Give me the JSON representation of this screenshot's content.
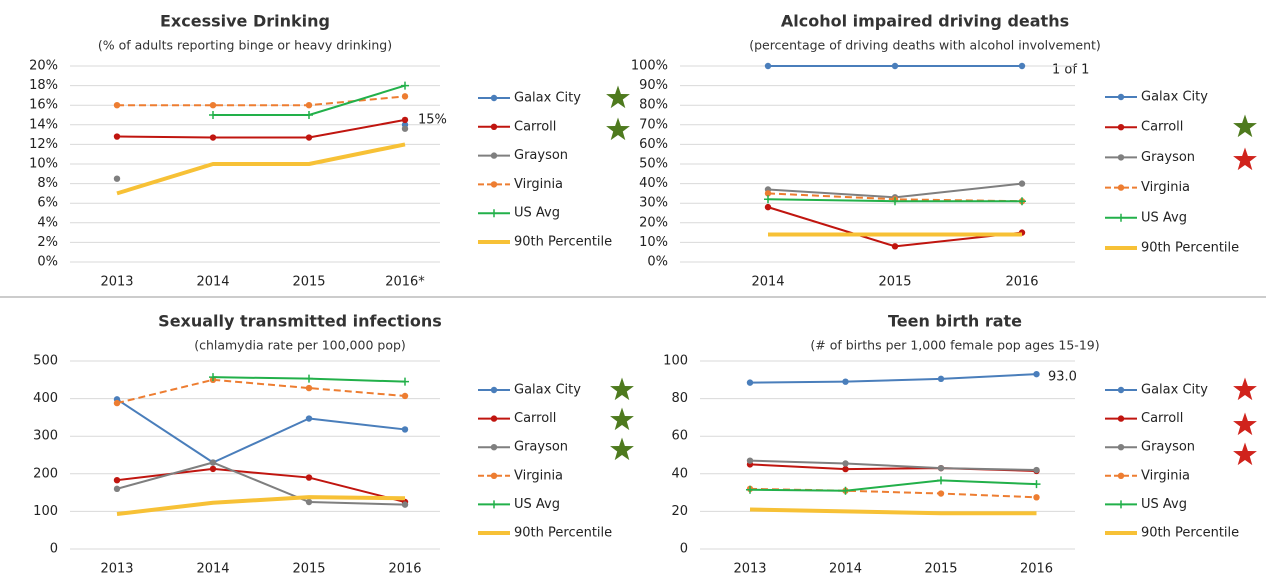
{
  "chart_data": [
    {
      "type": "line",
      "title": "Excessive Drinking",
      "subtitle": "(% of adults reporting binge or heavy drinking)",
      "categories": [
        "2013",
        "2014",
        "2015",
        "2016*"
      ],
      "ylim": [
        0,
        20
      ],
      "yticks": [
        {
          "value": 0,
          "label": "0%"
        },
        {
          "value": 2,
          "label": "2%"
        },
        {
          "value": 4,
          "label": "4%"
        },
        {
          "value": 6,
          "label": "6%"
        },
        {
          "value": 8,
          "label": "8%"
        },
        {
          "value": 10,
          "label": "10%"
        },
        {
          "value": 12,
          "label": "12%"
        },
        {
          "value": 14,
          "label": "14%"
        },
        {
          "value": 16,
          "label": "16%"
        },
        {
          "value": 18,
          "label": "18%"
        },
        {
          "value": 20,
          "label": "20%"
        }
      ],
      "grid": true,
      "annotations": [
        "15%"
      ],
      "series": [
        {
          "name": "Galax City",
          "color": "#4a7ebb",
          "marker": "circle",
          "values": [
            null,
            null,
            null,
            14.0
          ]
        },
        {
          "name": "Carroll",
          "color": "#c0150f",
          "marker": "circle",
          "values": [
            12.8,
            12.7,
            12.7,
            14.5
          ]
        },
        {
          "name": "Grayson",
          "color": "#7f7f7f",
          "marker": "circle",
          "values": [
            8.5,
            null,
            null,
            13.6
          ]
        },
        {
          "name": "Virginia",
          "color": "#ed7d31",
          "marker": "circle",
          "dashed": true,
          "values": [
            16,
            16,
            16,
            16.9
          ]
        },
        {
          "name": "US Avg",
          "color": "#22b04a",
          "marker": "plus",
          "values": [
            null,
            15,
            15,
            18
          ]
        },
        {
          "name": "90th Percentile",
          "color": "#f7c136",
          "marker": "none",
          "thick": true,
          "values": [
            7,
            10,
            10,
            12
          ]
        }
      ]
    },
    {
      "type": "line",
      "title": "Alcohol impaired driving deaths",
      "subtitle": "(percentage of driving deaths with alcohol involvement)",
      "categories": [
        "2014",
        "2015",
        "2016"
      ],
      "ylim": [
        0,
        100
      ],
      "yticks": [
        {
          "value": 0,
          "label": "0%"
        },
        {
          "value": 10,
          "label": "10%"
        },
        {
          "value": 20,
          "label": "20%"
        },
        {
          "value": 30,
          "label": "30%"
        },
        {
          "value": 40,
          "label": "40%"
        },
        {
          "value": 50,
          "label": "50%"
        },
        {
          "value": 60,
          "label": "60%"
        },
        {
          "value": 70,
          "label": "70%"
        },
        {
          "value": 80,
          "label": "80%"
        },
        {
          "value": 90,
          "label": "90%"
        },
        {
          "value": 100,
          "label": "100%"
        }
      ],
      "grid": true,
      "annotations": [
        "1 of 1"
      ],
      "series": [
        {
          "name": "Galax City",
          "color": "#4a7ebb",
          "marker": "circle",
          "values": [
            100,
            100,
            100
          ]
        },
        {
          "name": "Carroll",
          "color": "#c0150f",
          "marker": "circle",
          "values": [
            28,
            8,
            15
          ]
        },
        {
          "name": "Grayson",
          "color": "#7f7f7f",
          "marker": "circle",
          "values": [
            37,
            33,
            40
          ]
        },
        {
          "name": "Virginia",
          "color": "#ed7d31",
          "marker": "circle",
          "dashed": true,
          "values": [
            35,
            32,
            31
          ]
        },
        {
          "name": "US Avg",
          "color": "#22b04a",
          "marker": "plus",
          "values": [
            32,
            31,
            31
          ]
        },
        {
          "name": "90th Percentile",
          "color": "#f7c136",
          "marker": "none",
          "thick": true,
          "values": [
            14,
            14,
            14
          ]
        }
      ]
    },
    {
      "type": "line",
      "title": "Sexually transmitted infections",
      "subtitle": "(chlamydia rate per 100,000 pop)",
      "categories": [
        "2013",
        "2014",
        "2015",
        "2016"
      ],
      "ylim": [
        0,
        500
      ],
      "yticks": [
        0,
        100,
        200,
        300,
        400,
        500
      ],
      "grid": true,
      "series": [
        {
          "name": "Galax City",
          "color": "#4a7ebb",
          "marker": "circle",
          "values": [
            398,
            230,
            347,
            318
          ]
        },
        {
          "name": "Carroll",
          "color": "#c0150f",
          "marker": "circle",
          "values": [
            183,
            213,
            190,
            125
          ]
        },
        {
          "name": "Grayson",
          "color": "#7f7f7f",
          "marker": "circle",
          "values": [
            160,
            230,
            125,
            118
          ]
        },
        {
          "name": "Virginia",
          "color": "#ed7d31",
          "marker": "circle",
          "dashed": true,
          "values": [
            388,
            450,
            428,
            407
          ]
        },
        {
          "name": "US Avg",
          "color": "#22b04a",
          "marker": "plus",
          "values": [
            null,
            457,
            453,
            445
          ]
        },
        {
          "name": "90th Percentile",
          "color": "#f7c136",
          "marker": "none",
          "thick": true,
          "values": [
            93,
            123,
            138,
            135
          ]
        }
      ]
    },
    {
      "type": "line",
      "title": "Teen birth rate",
      "subtitle": "(# of births per 1,000 female pop ages 15-19)",
      "categories": [
        "2013",
        "2014",
        "2015",
        "2016"
      ],
      "ylim": [
        0,
        100
      ],
      "yticks": [
        0,
        20,
        40,
        60,
        80,
        100
      ],
      "grid": true,
      "annotations": [
        "93.0"
      ],
      "series": [
        {
          "name": "Galax City",
          "color": "#4a7ebb",
          "marker": "circle",
          "values": [
            88.5,
            89,
            90.5,
            93.0
          ]
        },
        {
          "name": "Carroll",
          "color": "#c0150f",
          "marker": "circle",
          "values": [
            45,
            42.5,
            43,
            41.5
          ]
        },
        {
          "name": "Grayson",
          "color": "#7f7f7f",
          "marker": "circle",
          "values": [
            47,
            45.5,
            43,
            42
          ]
        },
        {
          "name": "Virginia",
          "color": "#ed7d31",
          "marker": "circle",
          "dashed": true,
          "values": [
            32,
            31,
            29.5,
            27.5
          ]
        },
        {
          "name": "US Avg",
          "color": "#22b04a",
          "marker": "plus",
          "values": [
            31.5,
            31,
            36.5,
            34.5
          ]
        },
        {
          "name": "90th Percentile",
          "color": "#f7c136",
          "marker": "none",
          "thick": true,
          "values": [
            21,
            20,
            19,
            19
          ]
        }
      ]
    }
  ]
}
